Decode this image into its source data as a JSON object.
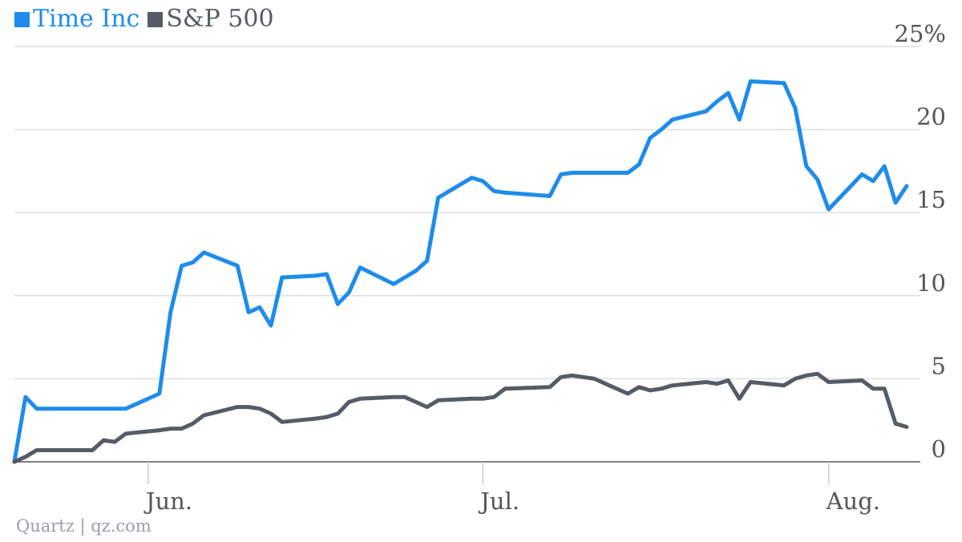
{
  "colors": {
    "time_inc": "#1f8ceb",
    "sp500": "#555c66",
    "grid": "#dedede",
    "axis": "#555555",
    "text": "#555555",
    "credit": "#9a9ea6"
  },
  "legend": [
    {
      "label": "Time Inc",
      "color": "#1f8ceb"
    },
    {
      "label": "S&P 500",
      "color": "#555c66"
    }
  ],
  "credit": "Quartz | qz.com",
  "chart_data": {
    "type": "line",
    "title": "",
    "xlabel": "",
    "ylabel": "",
    "x_range": [
      "2014-05-19",
      "2014-08-08"
    ],
    "ylim": [
      0,
      25
    ],
    "yticks": [
      0,
      5,
      10,
      15,
      20,
      25
    ],
    "ytick_labels": [
      "0",
      "5",
      "10",
      "15",
      "20",
      "25%"
    ],
    "y_axis_position": "right",
    "grid": true,
    "legend_position": "top-left",
    "xticks": [
      {
        "date": "2014-06-01",
        "label": "Jun."
      },
      {
        "date": "2014-07-01",
        "label": "Jul."
      },
      {
        "date": "2014-08-01",
        "label": "Aug."
      }
    ],
    "series": [
      {
        "name": "Time Inc",
        "color": "#1f8ceb",
        "points": [
          [
            "2014-05-20",
            0.0
          ],
          [
            "2014-05-21",
            3.9
          ],
          [
            "2014-05-22",
            3.2
          ],
          [
            "2014-05-27",
            3.2
          ],
          [
            "2014-05-28",
            3.2
          ],
          [
            "2014-05-29",
            3.2
          ],
          [
            "2014-05-30",
            3.2
          ],
          [
            "2014-06-02",
            4.1
          ],
          [
            "2014-06-03",
            9.0
          ],
          [
            "2014-06-04",
            11.8
          ],
          [
            "2014-06-05",
            12.0
          ],
          [
            "2014-06-06",
            12.6
          ],
          [
            "2014-06-09",
            11.8
          ],
          [
            "2014-06-10",
            9.0
          ],
          [
            "2014-06-11",
            9.3
          ],
          [
            "2014-06-12",
            8.2
          ],
          [
            "2014-06-13",
            11.1
          ],
          [
            "2014-06-16",
            11.2
          ],
          [
            "2014-06-17",
            11.3
          ],
          [
            "2014-06-18",
            9.5
          ],
          [
            "2014-06-19",
            10.2
          ],
          [
            "2014-06-20",
            11.7
          ],
          [
            "2014-06-23",
            10.7
          ],
          [
            "2014-06-24",
            11.1
          ],
          [
            "2014-06-25",
            11.5
          ],
          [
            "2014-06-26",
            12.1
          ],
          [
            "2014-06-27",
            15.9
          ],
          [
            "2014-06-30",
            17.1
          ],
          [
            "2014-07-01",
            16.9
          ],
          [
            "2014-07-02",
            16.3
          ],
          [
            "2014-07-03",
            16.2
          ],
          [
            "2014-07-07",
            16.0
          ],
          [
            "2014-07-08",
            17.3
          ],
          [
            "2014-07-09",
            17.4
          ],
          [
            "2014-07-10",
            17.4
          ],
          [
            "2014-07-11",
            17.4
          ],
          [
            "2014-07-14",
            17.4
          ],
          [
            "2014-07-15",
            17.9
          ],
          [
            "2014-07-16",
            19.5
          ],
          [
            "2014-07-17",
            20.0
          ],
          [
            "2014-07-18",
            20.6
          ],
          [
            "2014-07-21",
            21.1
          ],
          [
            "2014-07-22",
            21.7
          ],
          [
            "2014-07-23",
            22.2
          ],
          [
            "2014-07-24",
            20.6
          ],
          [
            "2014-07-25",
            22.9
          ],
          [
            "2014-07-28",
            22.8
          ],
          [
            "2014-07-29",
            21.3
          ],
          [
            "2014-07-30",
            17.8
          ],
          [
            "2014-07-31",
            17.0
          ],
          [
            "2014-08-01",
            15.2
          ],
          [
            "2014-08-04",
            17.3
          ],
          [
            "2014-08-05",
            16.9
          ],
          [
            "2014-08-06",
            17.8
          ],
          [
            "2014-08-07",
            15.6
          ],
          [
            "2014-08-08",
            16.6
          ]
        ]
      },
      {
        "name": "S&P 500",
        "color": "#555c66",
        "points": [
          [
            "2014-05-20",
            0.0
          ],
          [
            "2014-05-21",
            0.3
          ],
          [
            "2014-05-22",
            0.7
          ],
          [
            "2014-05-27",
            0.7
          ],
          [
            "2014-05-28",
            1.3
          ],
          [
            "2014-05-29",
            1.2
          ],
          [
            "2014-05-30",
            1.7
          ],
          [
            "2014-06-02",
            1.9
          ],
          [
            "2014-06-03",
            2.0
          ],
          [
            "2014-06-04",
            2.0
          ],
          [
            "2014-06-05",
            2.3
          ],
          [
            "2014-06-06",
            2.8
          ],
          [
            "2014-06-09",
            3.3
          ],
          [
            "2014-06-10",
            3.3
          ],
          [
            "2014-06-11",
            3.2
          ],
          [
            "2014-06-12",
            2.9
          ],
          [
            "2014-06-13",
            2.4
          ],
          [
            "2014-06-16",
            2.6
          ],
          [
            "2014-06-17",
            2.7
          ],
          [
            "2014-06-18",
            2.9
          ],
          [
            "2014-06-19",
            3.6
          ],
          [
            "2014-06-20",
            3.8
          ],
          [
            "2014-06-23",
            3.9
          ],
          [
            "2014-06-24",
            3.9
          ],
          [
            "2014-06-25",
            3.6
          ],
          [
            "2014-06-26",
            3.3
          ],
          [
            "2014-06-27",
            3.7
          ],
          [
            "2014-06-30",
            3.8
          ],
          [
            "2014-07-01",
            3.8
          ],
          [
            "2014-07-02",
            3.9
          ],
          [
            "2014-07-03",
            4.4
          ],
          [
            "2014-07-07",
            4.5
          ],
          [
            "2014-07-08",
            5.1
          ],
          [
            "2014-07-09",
            5.2
          ],
          [
            "2014-07-10",
            5.1
          ],
          [
            "2014-07-11",
            5.0
          ],
          [
            "2014-07-14",
            4.1
          ],
          [
            "2014-07-15",
            4.5
          ],
          [
            "2014-07-16",
            4.3
          ],
          [
            "2014-07-17",
            4.4
          ],
          [
            "2014-07-18",
            4.6
          ],
          [
            "2014-07-21",
            4.8
          ],
          [
            "2014-07-22",
            4.7
          ],
          [
            "2014-07-23",
            4.9
          ],
          [
            "2014-07-24",
            3.8
          ],
          [
            "2014-07-25",
            4.8
          ],
          [
            "2014-07-28",
            4.6
          ],
          [
            "2014-07-29",
            5.0
          ],
          [
            "2014-07-30",
            5.2
          ],
          [
            "2014-07-31",
            5.3
          ],
          [
            "2014-08-01",
            4.8
          ],
          [
            "2014-08-04",
            4.9
          ],
          [
            "2014-08-05",
            4.4
          ],
          [
            "2014-08-06",
            4.4
          ],
          [
            "2014-08-07",
            2.3
          ],
          [
            "2014-08-08",
            2.1
          ]
        ]
      }
    ]
  }
}
